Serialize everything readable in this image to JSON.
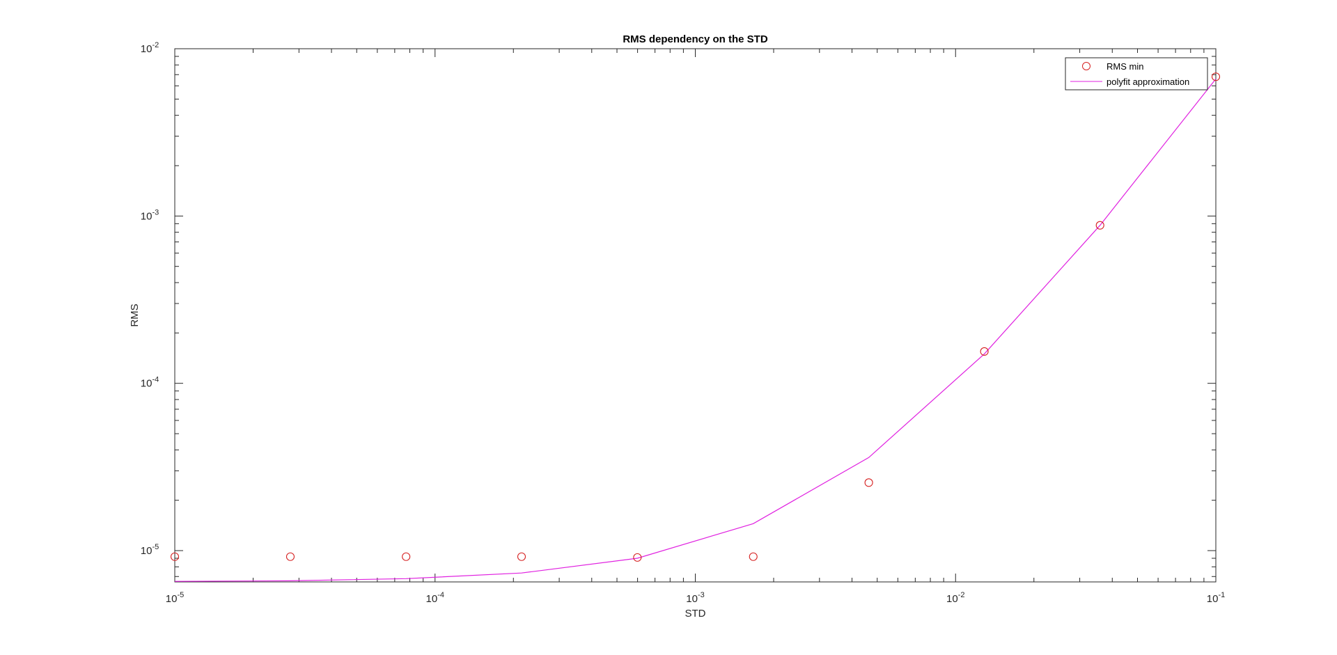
{
  "chart_data": {
    "type": "scatter",
    "title": "RMS dependency on the STD",
    "xlabel": "STD",
    "ylabel": "RMS",
    "xscale": "log",
    "yscale": "log",
    "xlim": [
      1e-05,
      0.1
    ],
    "ylim": [
      6.5e-06,
      0.01
    ],
    "grid": false,
    "legend_position": "top-right",
    "x_ticks": [
      {
        "value": 1e-05,
        "base": "10",
        "exp": "-5"
      },
      {
        "value": 0.0001,
        "base": "10",
        "exp": "-4"
      },
      {
        "value": 0.001,
        "base": "10",
        "exp": "-3"
      },
      {
        "value": 0.01,
        "base": "10",
        "exp": "-2"
      },
      {
        "value": 0.1,
        "base": "10",
        "exp": "-1"
      }
    ],
    "y_ticks": [
      {
        "value": 1e-05,
        "base": "10",
        "exp": "-5"
      },
      {
        "value": 0.0001,
        "base": "10",
        "exp": "-4"
      },
      {
        "value": 0.001,
        "base": "10",
        "exp": "-3"
      },
      {
        "value": 0.01,
        "base": "10",
        "exp": "-2"
      }
    ],
    "series": [
      {
        "name": "RMS min",
        "kind": "markers",
        "marker": "circle",
        "color": "#d62020",
        "x": [
          1e-05,
          2.78e-05,
          7.74e-05,
          0.000215,
          0.000599,
          0.00167,
          0.00464,
          0.0129,
          0.0359,
          0.1
        ],
        "y": [
          9.2e-06,
          9.2e-06,
          9.2e-06,
          9.2e-06,
          9.1e-06,
          9.2e-06,
          2.55e-05,
          0.000155,
          0.00088,
          0.0068
        ]
      },
      {
        "name": "polyfit approximation",
        "kind": "line",
        "color": "#e020e0",
        "x": [
          1e-05,
          2.78e-05,
          7.74e-05,
          0.000215,
          0.000599,
          0.00167,
          0.00464,
          0.0129,
          0.0359,
          0.1
        ],
        "y": [
          6.55e-06,
          6.6e-06,
          6.8e-06,
          7.35e-06,
          9e-06,
          1.45e-05,
          3.6e-05,
          0.00015,
          0.00088,
          0.0066
        ]
      }
    ]
  }
}
